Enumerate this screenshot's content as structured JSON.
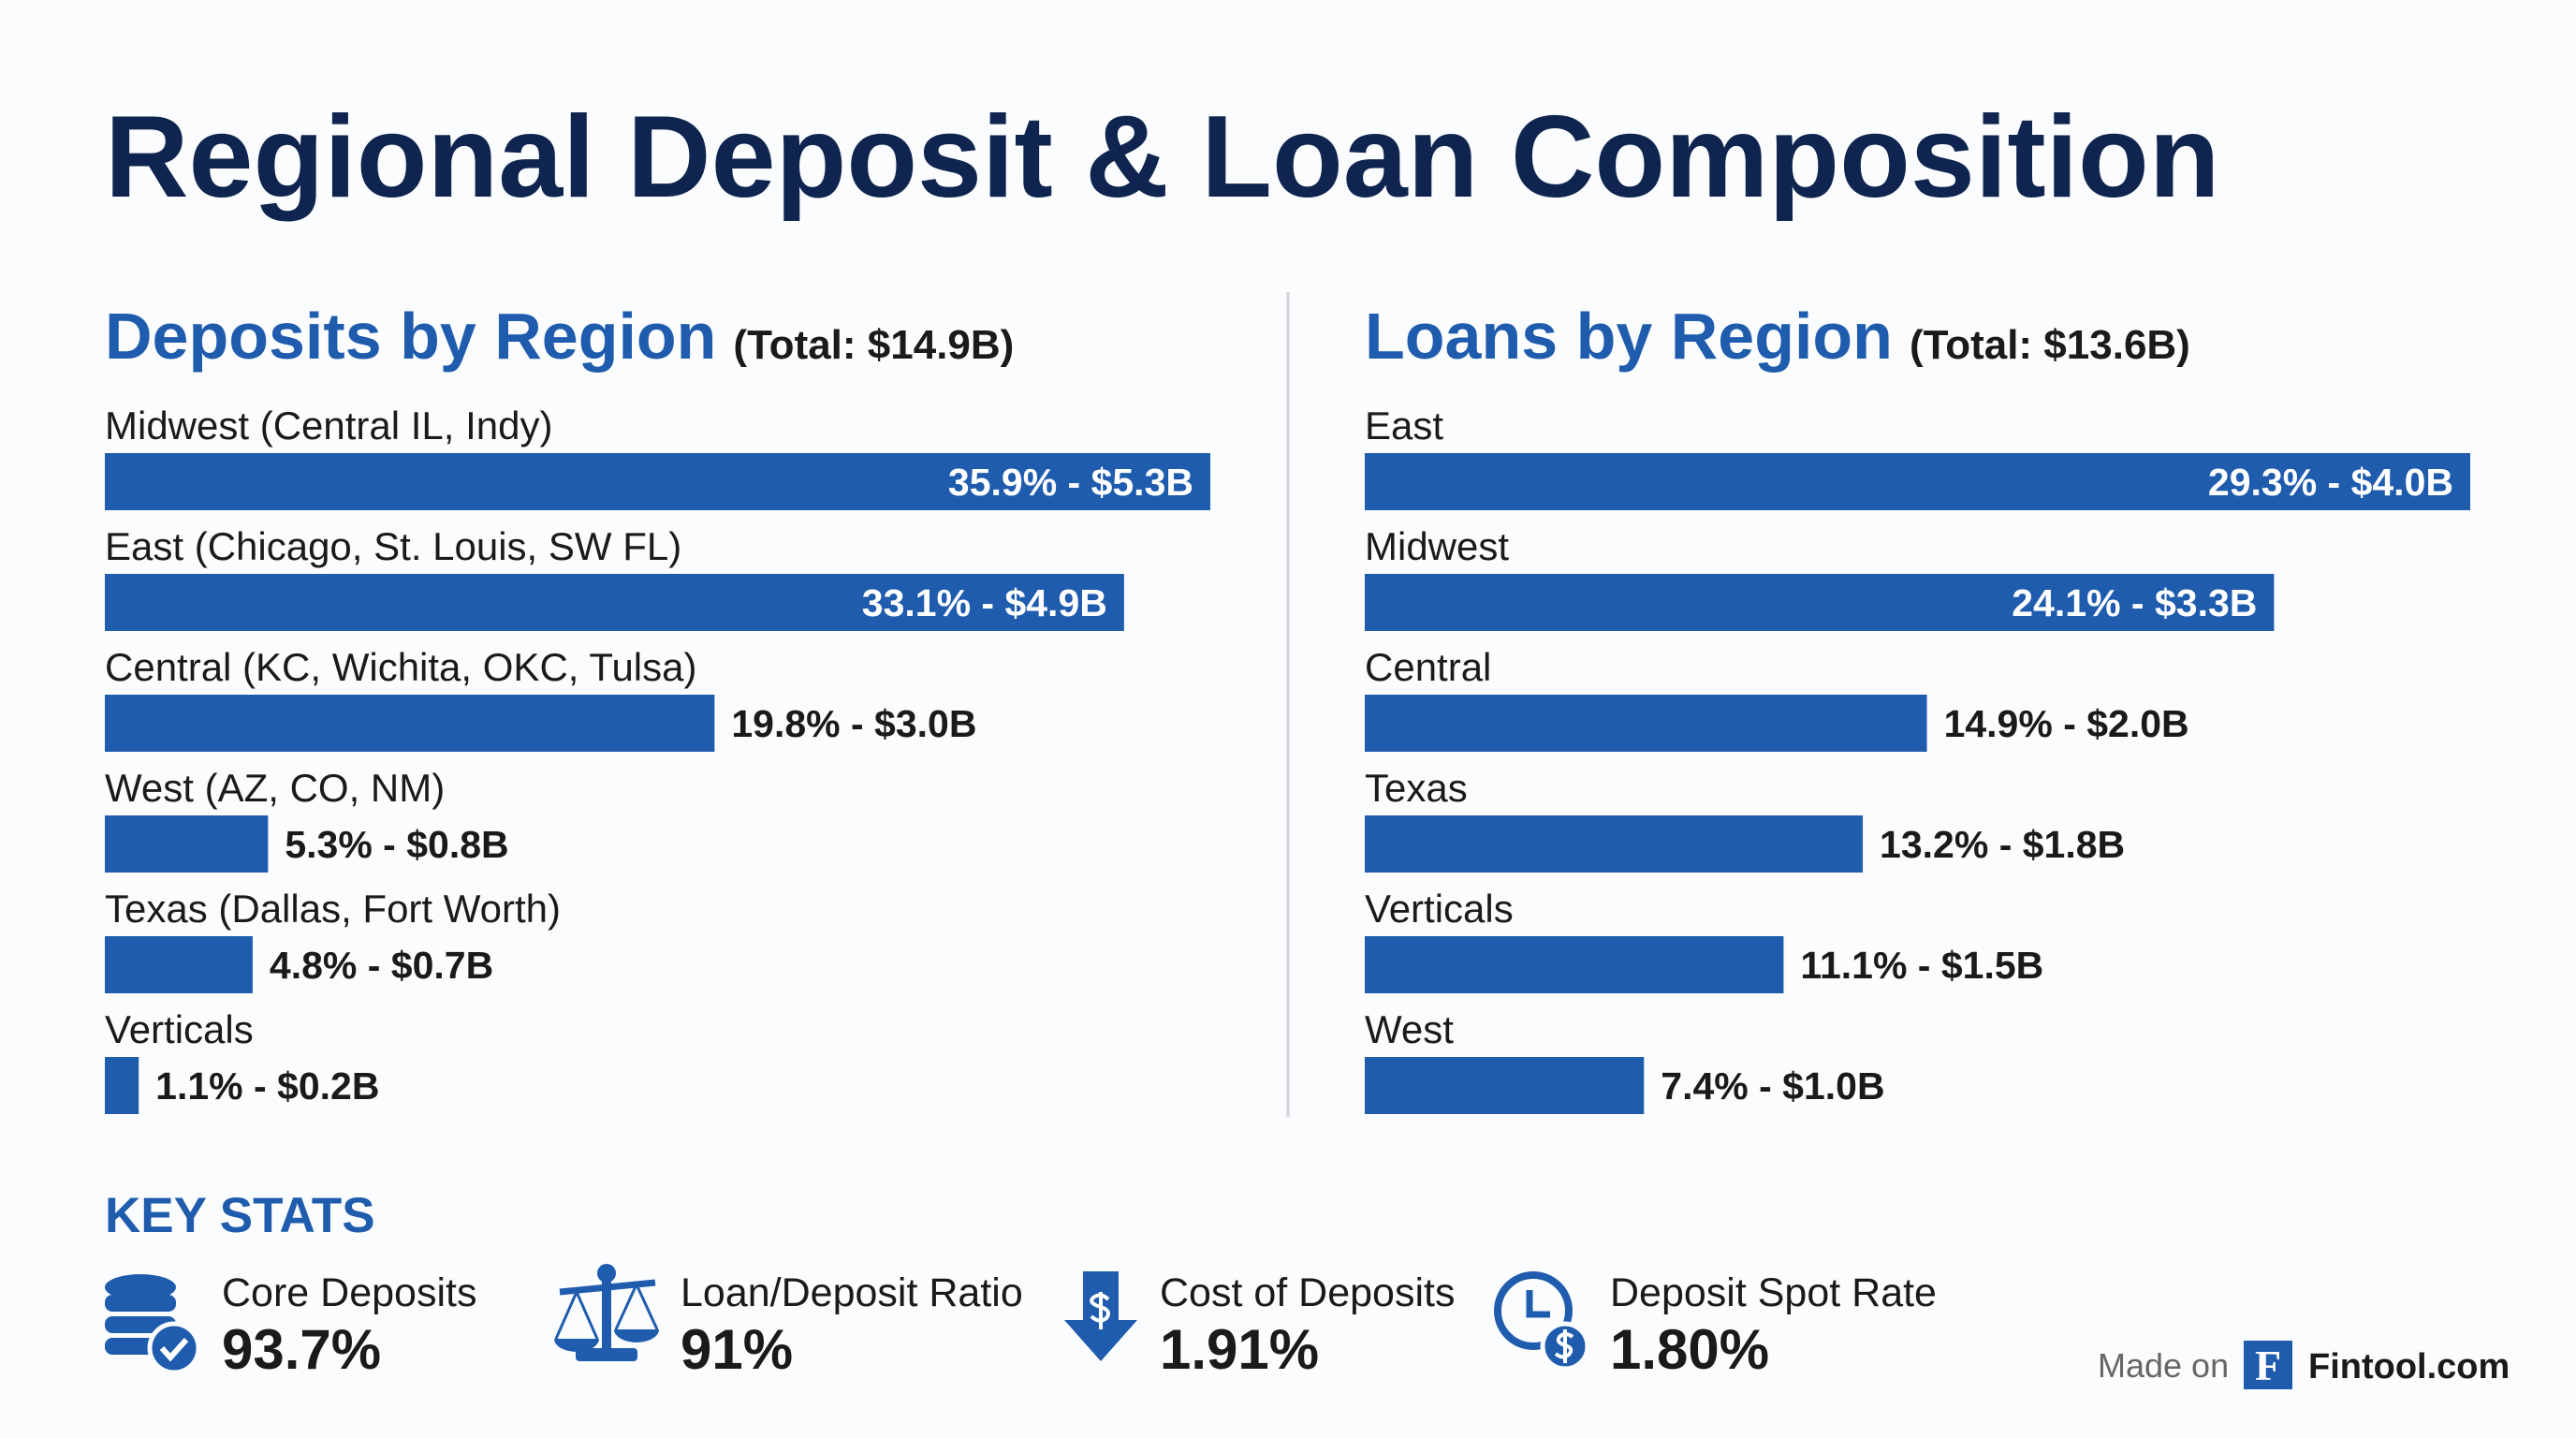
{
  "title": "Regional Deposit & Loan Composition",
  "chart_data": [
    {
      "type": "bar",
      "title": "Deposits by Region",
      "subtitle": "(Total: $14.9B)",
      "categories": [
        "Midwest (Central IL, Indy)",
        "East (Chicago, St. Louis, SW FL)",
        "Central (KC, Wichita, OKC, Tulsa)",
        "West (AZ, CO, NM)",
        "Texas (Dallas, Fort Worth)",
        "Verticals"
      ],
      "values": [
        35.9,
        33.1,
        19.8,
        5.3,
        4.8,
        1.1
      ],
      "value_labels": [
        "35.9% - $5.3B",
        "33.1% - $4.9B",
        "19.8% - $3.0B",
        "5.3% - $0.8B",
        "4.8% - $0.7B",
        "1.1% - $0.2B"
      ],
      "color": "#1f5cae"
    },
    {
      "type": "bar",
      "title": "Loans by Region",
      "subtitle": "(Total: $13.6B)",
      "categories": [
        "East",
        "Midwest",
        "Central",
        "Texas",
        "Verticals",
        "West"
      ],
      "values": [
        29.3,
        24.1,
        14.9,
        13.2,
        11.1,
        7.4
      ],
      "value_labels": [
        "29.3% - $4.0B",
        "24.1% - $3.3B",
        "14.9% - $2.0B",
        "13.2% - $1.8B",
        "11.1% - $1.5B",
        "7.4% - $1.0B"
      ],
      "color": "#1f5cae"
    }
  ],
  "key_stats": {
    "title": "KEY STATS",
    "items": [
      {
        "label": "Core Deposits",
        "value": "93.7%"
      },
      {
        "label": "Loan/Deposit Ratio",
        "value": "91%"
      },
      {
        "label": "Cost of Deposits",
        "value": "1.91%"
      },
      {
        "label": "Deposit Spot Rate",
        "value": "1.80%"
      }
    ]
  },
  "footer": {
    "made_on": "Made on",
    "logo": "F",
    "brand": "Fintool.com"
  }
}
